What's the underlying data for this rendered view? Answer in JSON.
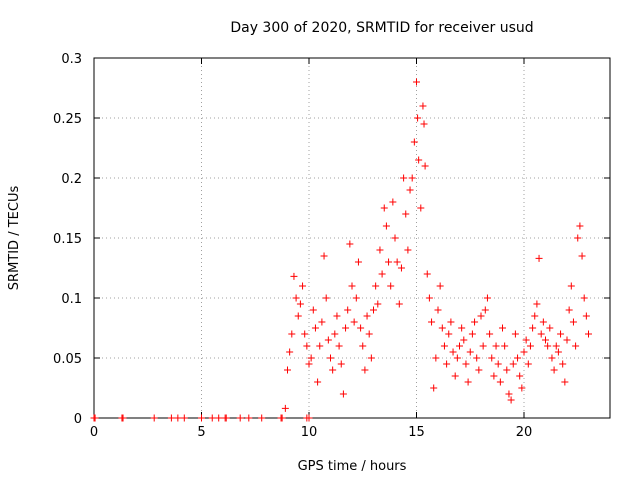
{
  "chart_data": {
    "type": "scatter",
    "title": "Day 300 of 2020, SRMTID for receiver usud",
    "xlabel": "GPS time / hours",
    "ylabel": "SRMTID / TECUs",
    "xlim": [
      0,
      24
    ],
    "ylim": [
      0,
      0.3
    ],
    "x_ticks": [
      0,
      5,
      10,
      15,
      20
    ],
    "x_tick_labels": [
      "0",
      "5",
      "10",
      "15",
      "20"
    ],
    "y_ticks": [
      0,
      0.05,
      0.1,
      0.15,
      0.2,
      0.25,
      0.3
    ],
    "y_tick_labels": [
      "0",
      "0.05",
      "0.1",
      "0.15",
      "0.2",
      "0.25",
      "0.3"
    ],
    "grid": true,
    "legend": "none",
    "marker": "+",
    "series": [
      {
        "name": "SRMTID",
        "color": "#ff0000",
        "points": [
          [
            0.0,
            0.0
          ],
          [
            0.05,
            0.0
          ],
          [
            1.3,
            0.0
          ],
          [
            1.35,
            0.0
          ],
          [
            2.8,
            0.0
          ],
          [
            3.6,
            0.0
          ],
          [
            3.9,
            0.0
          ],
          [
            4.2,
            0.0
          ],
          [
            5.0,
            0.0
          ],
          [
            5.5,
            0.0
          ],
          [
            5.8,
            0.0
          ],
          [
            6.1,
            0.0
          ],
          [
            6.15,
            0.0
          ],
          [
            6.8,
            0.0
          ],
          [
            7.2,
            0.0
          ],
          [
            7.8,
            0.0
          ],
          [
            8.7,
            0.0
          ],
          [
            8.75,
            0.0
          ],
          [
            9.9,
            0.0
          ],
          [
            10.0,
            0.0
          ],
          [
            8.9,
            0.008
          ],
          [
            9.0,
            0.04
          ],
          [
            9.1,
            0.055
          ],
          [
            9.2,
            0.07
          ],
          [
            9.3,
            0.118
          ],
          [
            9.4,
            0.1
          ],
          [
            9.5,
            0.085
          ],
          [
            9.6,
            0.095
          ],
          [
            9.7,
            0.11
          ],
          [
            9.8,
            0.07
          ],
          [
            9.9,
            0.06
          ],
          [
            10.0,
            0.045
          ],
          [
            10.1,
            0.05
          ],
          [
            10.2,
            0.09
          ],
          [
            10.3,
            0.075
          ],
          [
            10.4,
            0.03
          ],
          [
            10.5,
            0.06
          ],
          [
            10.6,
            0.08
          ],
          [
            10.7,
            0.135
          ],
          [
            10.8,
            0.1
          ],
          [
            10.9,
            0.065
          ],
          [
            11.0,
            0.05
          ],
          [
            11.1,
            0.04
          ],
          [
            11.2,
            0.07
          ],
          [
            11.3,
            0.085
          ],
          [
            11.4,
            0.06
          ],
          [
            11.5,
            0.045
          ],
          [
            11.6,
            0.02
          ],
          [
            11.7,
            0.075
          ],
          [
            11.8,
            0.09
          ],
          [
            11.9,
            0.145
          ],
          [
            12.0,
            0.11
          ],
          [
            12.1,
            0.08
          ],
          [
            12.2,
            0.1
          ],
          [
            12.3,
            0.13
          ],
          [
            12.4,
            0.075
          ],
          [
            12.5,
            0.06
          ],
          [
            12.6,
            0.04
          ],
          [
            12.7,
            0.085
          ],
          [
            12.8,
            0.07
          ],
          [
            12.9,
            0.05
          ],
          [
            13.0,
            0.09
          ],
          [
            13.1,
            0.11
          ],
          [
            13.2,
            0.095
          ],
          [
            13.3,
            0.14
          ],
          [
            13.4,
            0.12
          ],
          [
            13.5,
            0.175
          ],
          [
            13.6,
            0.16
          ],
          [
            13.7,
            0.13
          ],
          [
            13.8,
            0.11
          ],
          [
            13.9,
            0.18
          ],
          [
            14.0,
            0.15
          ],
          [
            14.1,
            0.13
          ],
          [
            14.2,
            0.095
          ],
          [
            14.3,
            0.125
          ],
          [
            14.4,
            0.2
          ],
          [
            14.5,
            0.17
          ],
          [
            14.6,
            0.14
          ],
          [
            14.7,
            0.19
          ],
          [
            14.8,
            0.2
          ],
          [
            14.9,
            0.23
          ],
          [
            15.0,
            0.28
          ],
          [
            15.05,
            0.25
          ],
          [
            15.1,
            0.215
          ],
          [
            15.2,
            0.175
          ],
          [
            15.3,
            0.26
          ],
          [
            15.35,
            0.245
          ],
          [
            15.4,
            0.21
          ],
          [
            15.5,
            0.12
          ],
          [
            15.6,
            0.1
          ],
          [
            15.7,
            0.08
          ],
          [
            15.8,
            0.025
          ],
          [
            15.9,
            0.05
          ],
          [
            16.0,
            0.09
          ],
          [
            16.1,
            0.11
          ],
          [
            16.2,
            0.075
          ],
          [
            16.3,
            0.06
          ],
          [
            16.4,
            0.045
          ],
          [
            16.5,
            0.07
          ],
          [
            16.6,
            0.08
          ],
          [
            16.7,
            0.055
          ],
          [
            16.8,
            0.035
          ],
          [
            16.9,
            0.05
          ],
          [
            17.0,
            0.06
          ],
          [
            17.1,
            0.075
          ],
          [
            17.2,
            0.065
          ],
          [
            17.3,
            0.045
          ],
          [
            17.4,
            0.03
          ],
          [
            17.5,
            0.055
          ],
          [
            17.6,
            0.07
          ],
          [
            17.7,
            0.08
          ],
          [
            17.8,
            0.05
          ],
          [
            17.9,
            0.04
          ],
          [
            18.0,
            0.085
          ],
          [
            18.1,
            0.06
          ],
          [
            18.2,
            0.09
          ],
          [
            18.3,
            0.1
          ],
          [
            18.4,
            0.07
          ],
          [
            18.5,
            0.05
          ],
          [
            18.6,
            0.035
          ],
          [
            18.7,
            0.06
          ],
          [
            18.8,
            0.045
          ],
          [
            18.9,
            0.03
          ],
          [
            19.0,
            0.075
          ],
          [
            19.1,
            0.06
          ],
          [
            19.2,
            0.04
          ],
          [
            19.3,
            0.02
          ],
          [
            19.4,
            0.015
          ],
          [
            19.5,
            0.045
          ],
          [
            19.6,
            0.07
          ],
          [
            19.7,
            0.05
          ],
          [
            19.8,
            0.035
          ],
          [
            19.9,
            0.025
          ],
          [
            20.0,
            0.055
          ],
          [
            20.1,
            0.065
          ],
          [
            20.2,
            0.045
          ],
          [
            20.3,
            0.06
          ],
          [
            20.4,
            0.075
          ],
          [
            20.5,
            0.085
          ],
          [
            20.6,
            0.095
          ],
          [
            20.7,
            0.133
          ],
          [
            20.8,
            0.07
          ],
          [
            20.9,
            0.08
          ],
          [
            21.0,
            0.065
          ],
          [
            21.1,
            0.06
          ],
          [
            21.2,
            0.075
          ],
          [
            21.3,
            0.05
          ],
          [
            21.4,
            0.04
          ],
          [
            21.5,
            0.06
          ],
          [
            21.6,
            0.055
          ],
          [
            21.7,
            0.07
          ],
          [
            21.8,
            0.045
          ],
          [
            21.9,
            0.03
          ],
          [
            22.0,
            0.065
          ],
          [
            22.1,
            0.09
          ],
          [
            22.2,
            0.11
          ],
          [
            22.3,
            0.08
          ],
          [
            22.4,
            0.06
          ],
          [
            22.5,
            0.15
          ],
          [
            22.6,
            0.16
          ],
          [
            22.7,
            0.135
          ],
          [
            22.8,
            0.1
          ],
          [
            22.9,
            0.085
          ],
          [
            23.0,
            0.07
          ]
        ]
      }
    ]
  }
}
